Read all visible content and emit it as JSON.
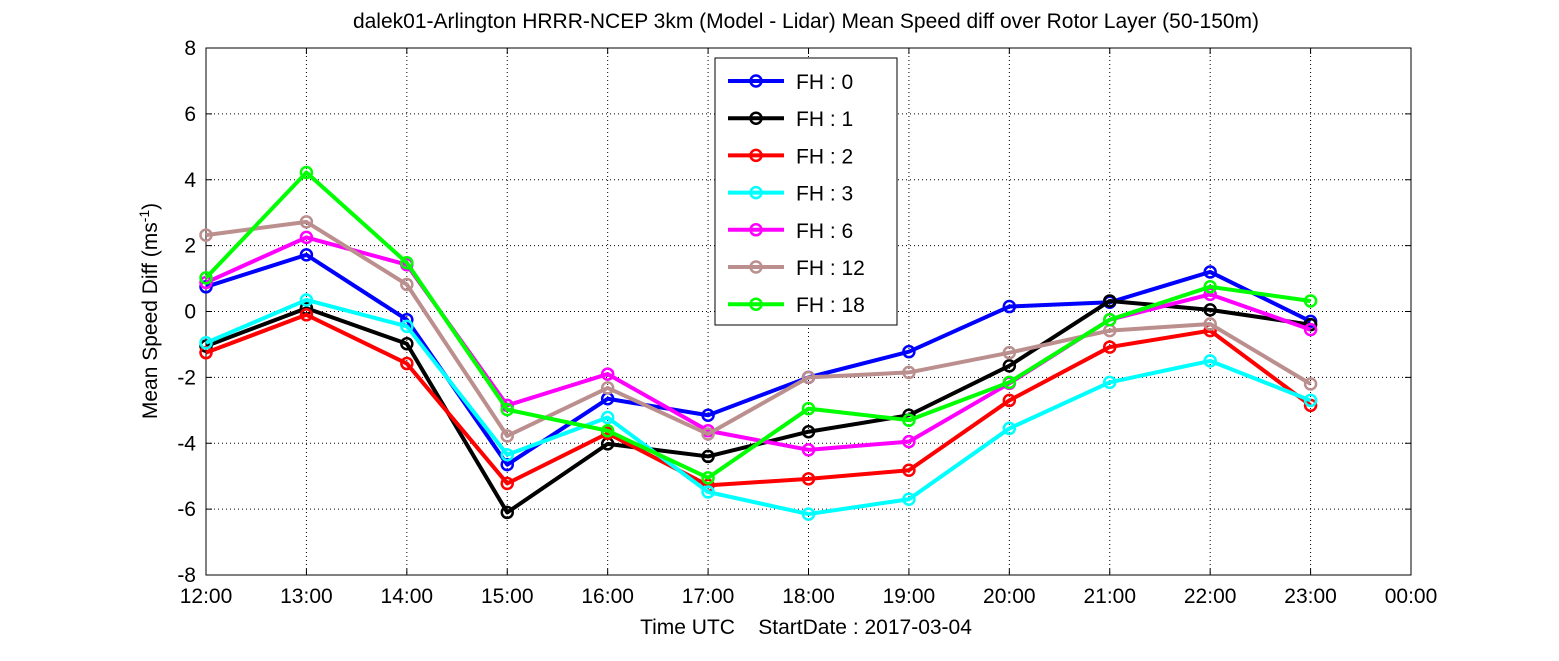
{
  "chart_data": {
    "type": "line",
    "title": "dalek01-Arlington HRRR-NCEP 3km (Model - Lidar) Mean Speed diff over Rotor Layer (50-150m)",
    "xlabel": "Time UTC    StartDate : 2017-03-04",
    "ylabel_main": "Mean Speed Diff (ms",
    "ylabel_sup": "-1",
    "ylabel_close": ")",
    "x_ticks": [
      "12:00",
      "13:00",
      "14:00",
      "15:00",
      "16:00",
      "17:00",
      "18:00",
      "19:00",
      "20:00",
      "21:00",
      "22:00",
      "23:00",
      "00:00"
    ],
    "x": [
      "12:00",
      "13:00",
      "14:00",
      "15:00",
      "16:00",
      "17:00",
      "18:00",
      "19:00",
      "20:00",
      "21:00",
      "22:00",
      "23:00"
    ],
    "ylim": [
      -8,
      8
    ],
    "y_ticks": [
      "-8",
      "-6",
      "-4",
      "-2",
      "0",
      "2",
      "4",
      "6",
      "8"
    ],
    "grid": true,
    "legend_position": "top-center",
    "series": [
      {
        "name": "FH : 0",
        "color": "#0000ff",
        "values": [
          0.75,
          1.72,
          -0.25,
          -4.65,
          -2.65,
          -3.15,
          -2.0,
          -1.22,
          0.15,
          0.28,
          1.2,
          -0.3
        ]
      },
      {
        "name": "FH : 1",
        "color": "#000000",
        "values": [
          -1.05,
          0.1,
          -0.98,
          -6.1,
          -4.02,
          -4.4,
          -3.65,
          -3.15,
          -1.65,
          0.32,
          0.05,
          -0.4
        ]
      },
      {
        "name": "FH : 2",
        "color": "#ff0000",
        "values": [
          -1.25,
          -0.1,
          -1.58,
          -5.22,
          -3.7,
          -5.28,
          -5.08,
          -4.82,
          -2.7,
          -1.08,
          -0.58,
          -2.85
        ]
      },
      {
        "name": "FH : 3",
        "color": "#00ffff",
        "values": [
          -0.95,
          0.35,
          -0.45,
          -4.35,
          -3.22,
          -5.48,
          -6.15,
          -5.7,
          -3.55,
          -2.15,
          -1.5,
          -2.7
        ]
      },
      {
        "name": "FH : 6",
        "color": "#ff00ff",
        "values": [
          0.88,
          2.25,
          1.42,
          -2.85,
          -1.9,
          -3.62,
          -4.2,
          -3.95,
          -2.18,
          -0.25,
          0.52,
          -0.55
        ]
      },
      {
        "name": "FH : 12",
        "color": "#bc8f8f",
        "values": [
          2.32,
          2.72,
          0.82,
          -3.78,
          -2.32,
          -3.72,
          -2.0,
          -1.85,
          -1.25,
          -0.58,
          -0.38,
          -2.2
        ]
      },
      {
        "name": "FH : 18",
        "color": "#00ff00",
        "values": [
          1.02,
          4.22,
          1.48,
          -2.98,
          -3.62,
          -5.05,
          -2.95,
          -3.3,
          -2.15,
          -0.25,
          0.75,
          0.32
        ]
      }
    ]
  }
}
